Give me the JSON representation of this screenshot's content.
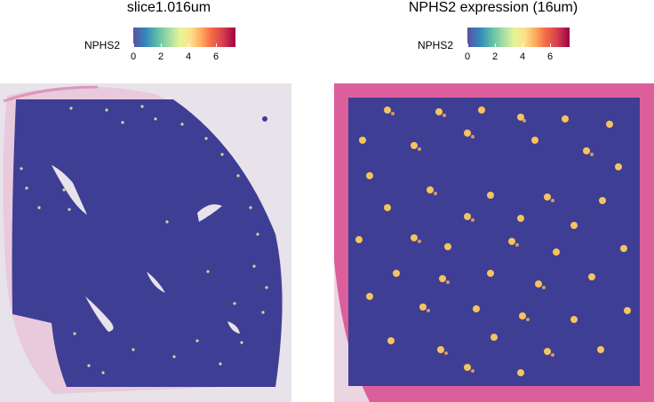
{
  "panels": [
    {
      "title": "slice1.016um",
      "legend": {
        "label": "NPHS2",
        "ticks": [
          "0",
          "2",
          "4",
          "6"
        ]
      }
    },
    {
      "title": "NPHS2 expression (16um)",
      "legend": {
        "label": "NPHS2",
        "ticks": [
          "0",
          "2",
          "4",
          "6"
        ]
      }
    }
  ],
  "colors": {
    "tissue_fill": "#3f3e95",
    "he_pink": "#d9488b",
    "background_grey": "#e7e3e8",
    "scale": [
      "#5e4fa2",
      "#3288bd",
      "#66c2a5",
      "#abdda4",
      "#e6f598",
      "#fee08b",
      "#fdae61",
      "#f46d43",
      "#d53e4f",
      "#9e0142"
    ]
  }
}
